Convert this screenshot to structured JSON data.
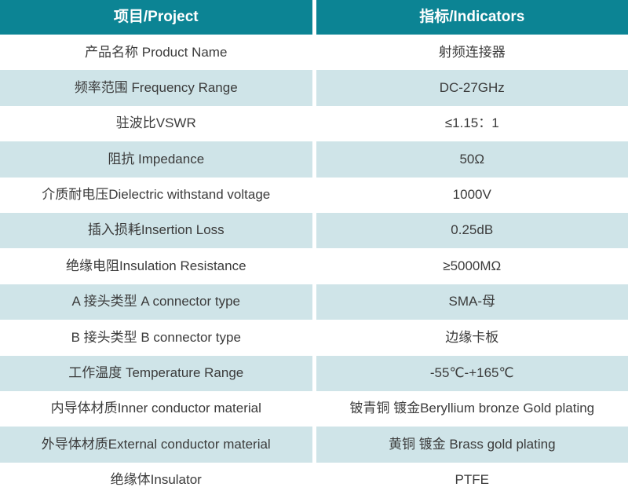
{
  "colors": {
    "header_bg": "#0c8494",
    "header_text": "#ffffff",
    "row_alt_bg": "#cfe4e8",
    "row_bg": "#ffffff",
    "body_text": "#3b3b3b",
    "divider": "#ffffff"
  },
  "table": {
    "header": {
      "project": "项目/Project",
      "indicators": "指标/Indicators"
    },
    "rows": [
      {
        "project": "产品名称 Product Name",
        "indicator": "射频连接器"
      },
      {
        "project": "频率范围 Frequency Range",
        "indicator": "DC-27GHz"
      },
      {
        "project": "驻波比VSWR",
        "indicator": "≤1.15：1"
      },
      {
        "project": "阻抗 Impedance",
        "indicator": "50Ω"
      },
      {
        "project": "介质耐电压Dielectric withstand voltage",
        "indicator": "1000V"
      },
      {
        "project": "插入损耗Insertion Loss",
        "indicator": "0.25dB"
      },
      {
        "project": "绝缘电阻Insulation Resistance",
        "indicator": "≥5000MΩ"
      },
      {
        "project": "A 接头类型  A connector type",
        "indicator": "SMA-母"
      },
      {
        "project": "B 接头类型  B connector type",
        "indicator": "边缘卡板"
      },
      {
        "project": "工作温度 Temperature Range",
        "indicator": "-55℃-+165℃"
      },
      {
        "project": "内导体材质Inner conductor material",
        "indicator": "铍青铜 镀金Beryllium bronze Gold plating"
      },
      {
        "project": "外导体材质External conductor material",
        "indicator": "黄铜 镀金 Brass gold plating"
      },
      {
        "project": "绝缘体Insulator",
        "indicator": "PTFE"
      }
    ]
  }
}
